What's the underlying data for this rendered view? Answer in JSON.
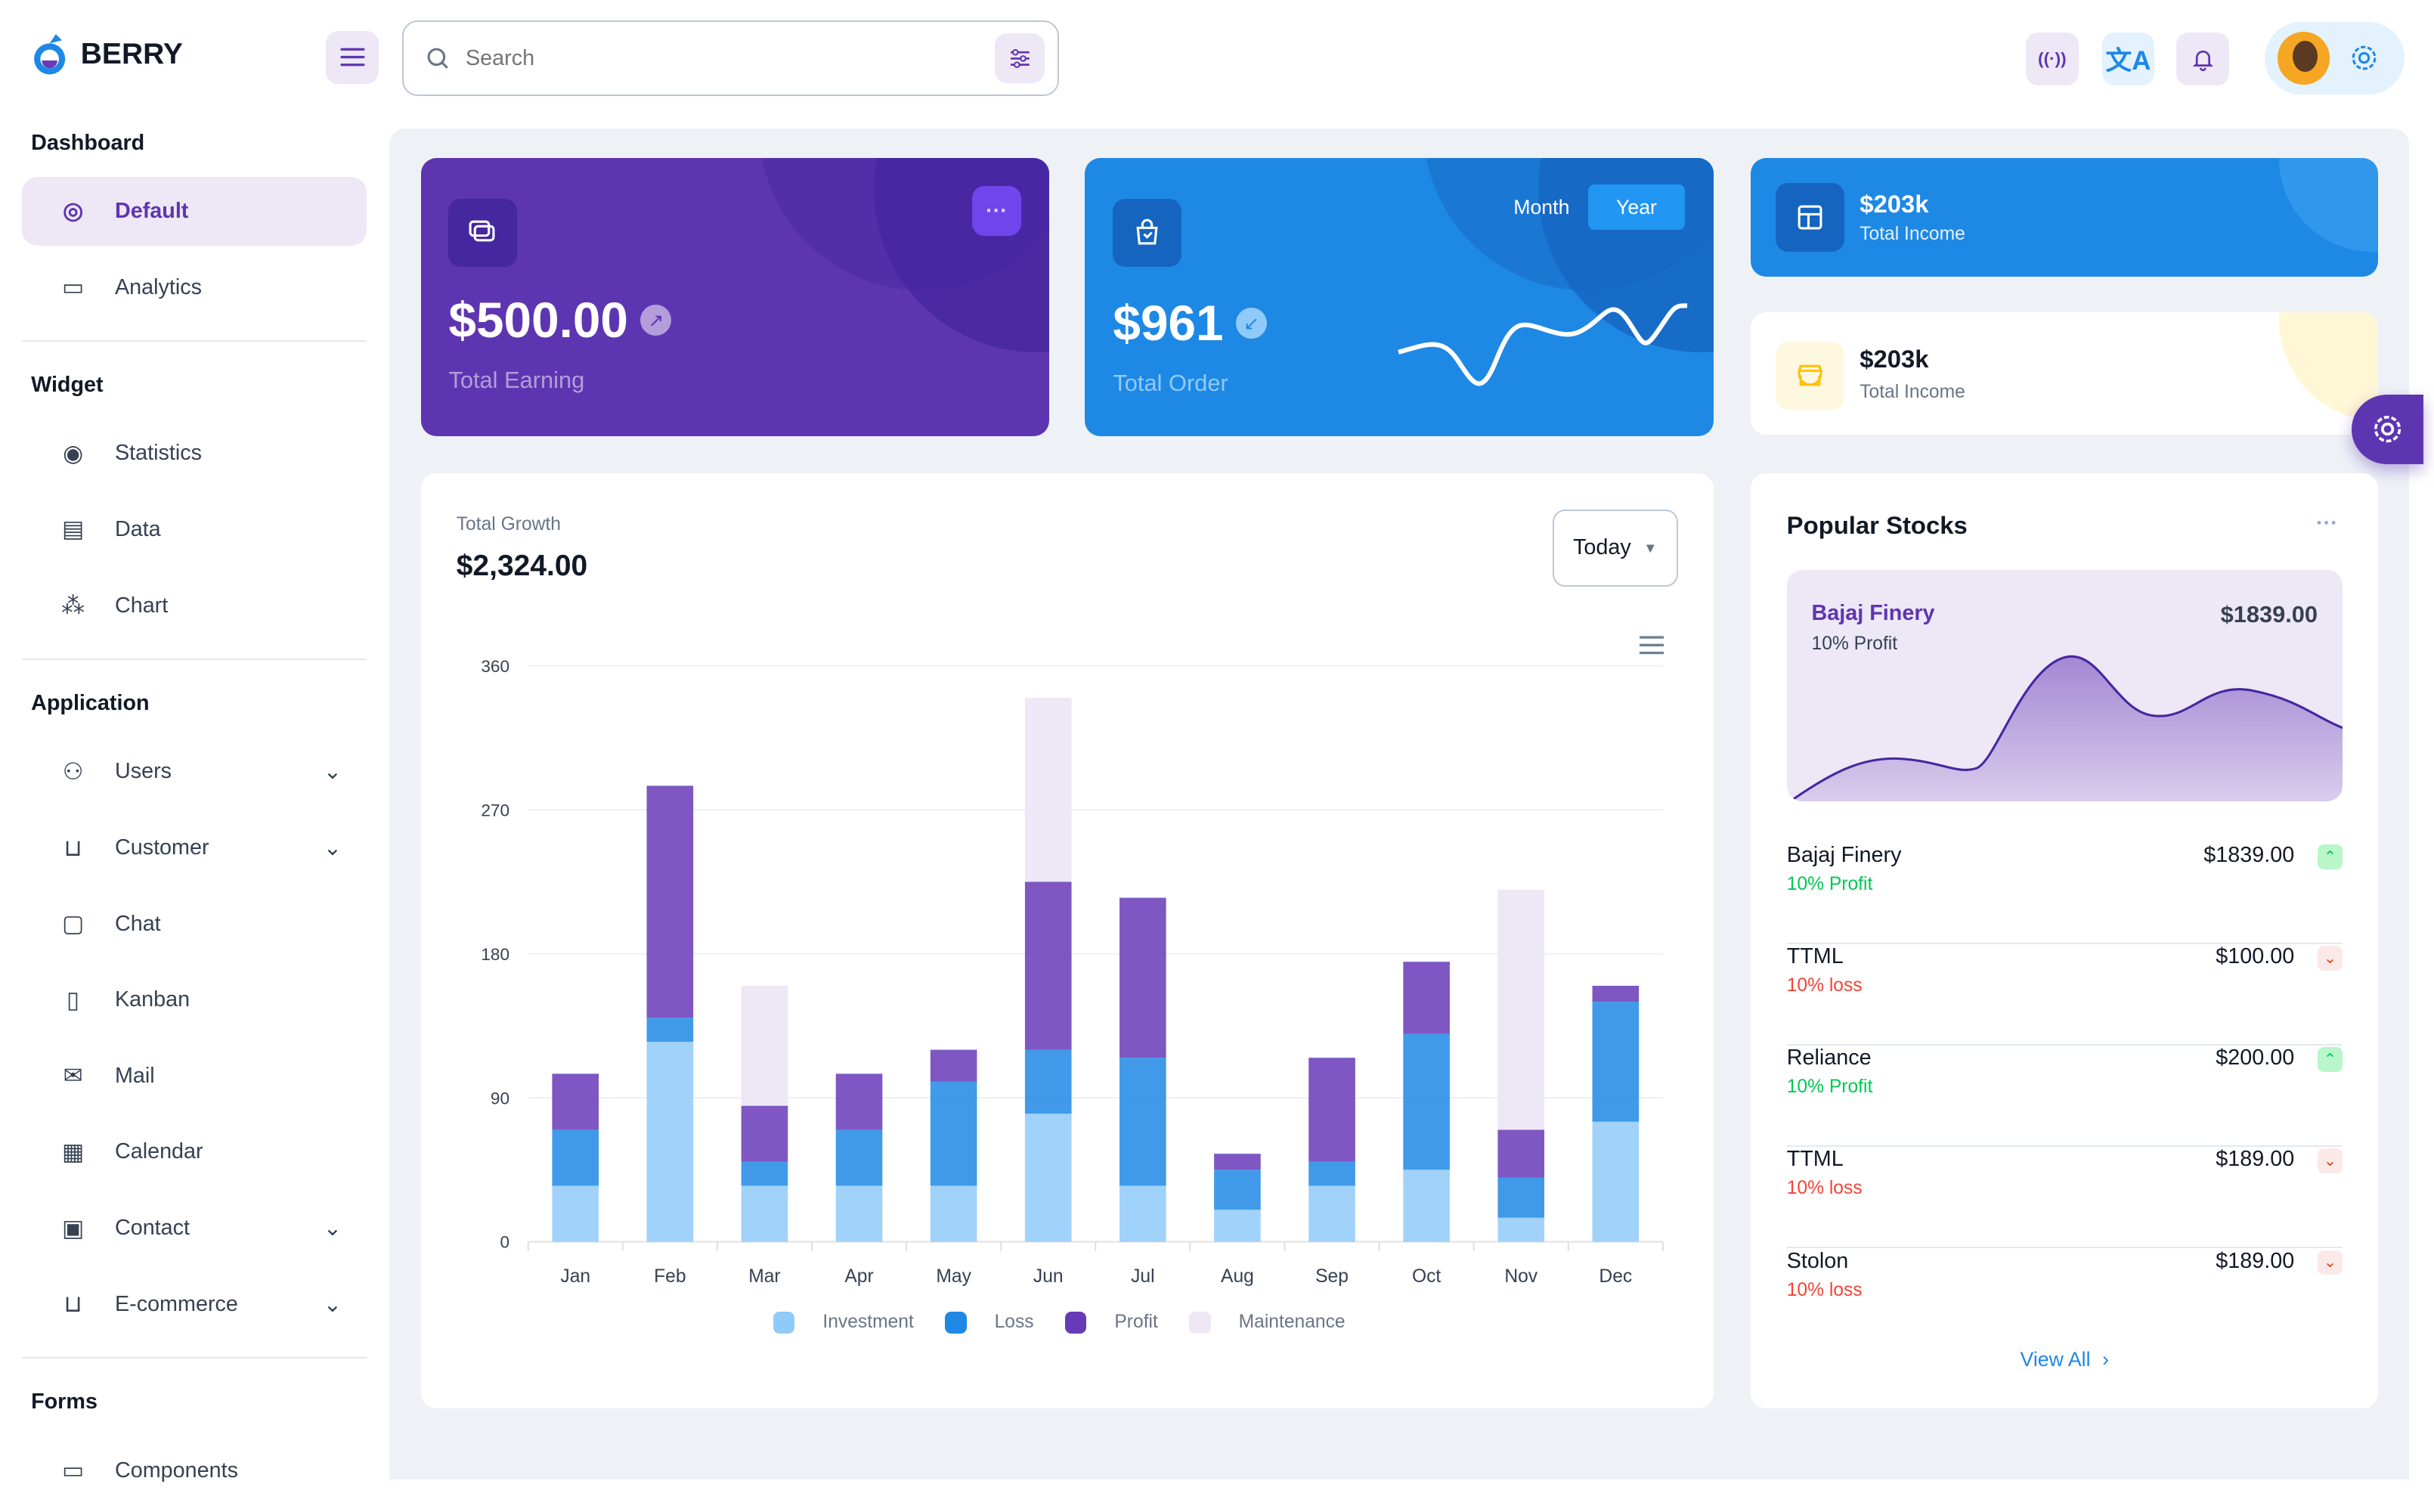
{
  "header": {
    "brand": "BERRY",
    "search_placeholder": "Search"
  },
  "sidebar": {
    "sections": [
      {
        "title": "Dashboard",
        "items": [
          {
            "label": "Default",
            "icon": "dashboard-icon",
            "active": true
          },
          {
            "label": "Analytics",
            "icon": "device-analytics-icon"
          }
        ]
      },
      {
        "title": "Widget",
        "items": [
          {
            "label": "Statistics",
            "icon": "chart-arcs-icon"
          },
          {
            "label": "Data",
            "icon": "clipboard-list-icon"
          },
          {
            "label": "Chart",
            "icon": "chart-dots-icon"
          }
        ]
      },
      {
        "title": "Application",
        "items": [
          {
            "label": "Users",
            "icon": "user-check-icon",
            "chevron": true
          },
          {
            "label": "Customer",
            "icon": "basket-icon",
            "chevron": true
          },
          {
            "label": "Chat",
            "icon": "messages-icon"
          },
          {
            "label": "Kanban",
            "icon": "layout-kanban-icon"
          },
          {
            "label": "Mail",
            "icon": "mail-icon"
          },
          {
            "label": "Calendar",
            "icon": "calendar-icon"
          },
          {
            "label": "Contact",
            "icon": "nfc-icon",
            "chevron": true
          },
          {
            "label": "E-commerce",
            "icon": "basket-icon",
            "chevron": true
          }
        ]
      },
      {
        "title": "Forms",
        "items": [
          {
            "label": "Components",
            "icon": "forms-icon"
          }
        ]
      }
    ]
  },
  "cards": {
    "earning": {
      "value": "$500.00",
      "label": "Total Earning",
      "color": "#5e35b1"
    },
    "order": {
      "value": "$961",
      "label": "Total Order",
      "tab_month": "Month",
      "tab_year": "Year",
      "active_tab": "Year",
      "color": "#1e88e5"
    },
    "income_dark": {
      "value": "$203k",
      "label": "Total Income"
    },
    "income_light": {
      "value": "$203k",
      "label": "Total Income"
    }
  },
  "growth": {
    "label": "Total Growth",
    "value": "$2,324.00",
    "period": "Today"
  },
  "chart_data": {
    "type": "bar",
    "stacked": true,
    "categories": [
      "Jan",
      "Feb",
      "Mar",
      "Apr",
      "May",
      "Jun",
      "Jul",
      "Aug",
      "Sep",
      "Oct",
      "Nov",
      "Dec"
    ],
    "yticks": [
      "0",
      "90",
      "180",
      "270",
      "360"
    ],
    "ylim": [
      0,
      360
    ],
    "grid": true,
    "legend": "bottom",
    "series": [
      {
        "name": "Investment",
        "color": "#90caf9",
        "values": [
          35,
          125,
          35,
          35,
          35,
          80,
          35,
          20,
          35,
          45,
          15,
          75
        ]
      },
      {
        "name": "Loss",
        "color": "#1e88e5",
        "values": [
          35,
          15,
          15,
          35,
          65,
          40,
          80,
          25,
          15,
          85,
          25,
          75
        ]
      },
      {
        "name": "Profit",
        "color": "#673ab7",
        "values": [
          35,
          145,
          35,
          35,
          20,
          105,
          100,
          10,
          65,
          45,
          30,
          10
        ]
      },
      {
        "name": "Maintenance",
        "color": "#ede7f6",
        "values": [
          0,
          0,
          75,
          0,
          0,
          115,
          0,
          0,
          0,
          0,
          150,
          0
        ]
      }
    ]
  },
  "stocks": {
    "title": "Popular Stocks",
    "featured": {
      "name": "Bajaj Finery",
      "sub": "10% Profit",
      "value": "$1839.00"
    },
    "rows": [
      {
        "name": "Bajaj Finery",
        "value": "$1839.00",
        "sub": "10% Profit",
        "trend": "up"
      },
      {
        "name": "TTML",
        "value": "$100.00",
        "sub": "10% loss",
        "trend": "down"
      },
      {
        "name": "Reliance",
        "value": "$200.00",
        "sub": "10% Profit",
        "trend": "up"
      },
      {
        "name": "TTML",
        "value": "$189.00",
        "sub": "10% loss",
        "trend": "down"
      },
      {
        "name": "Stolon",
        "value": "$189.00",
        "sub": "10% loss",
        "trend": "down"
      }
    ],
    "view_all": "View All"
  }
}
